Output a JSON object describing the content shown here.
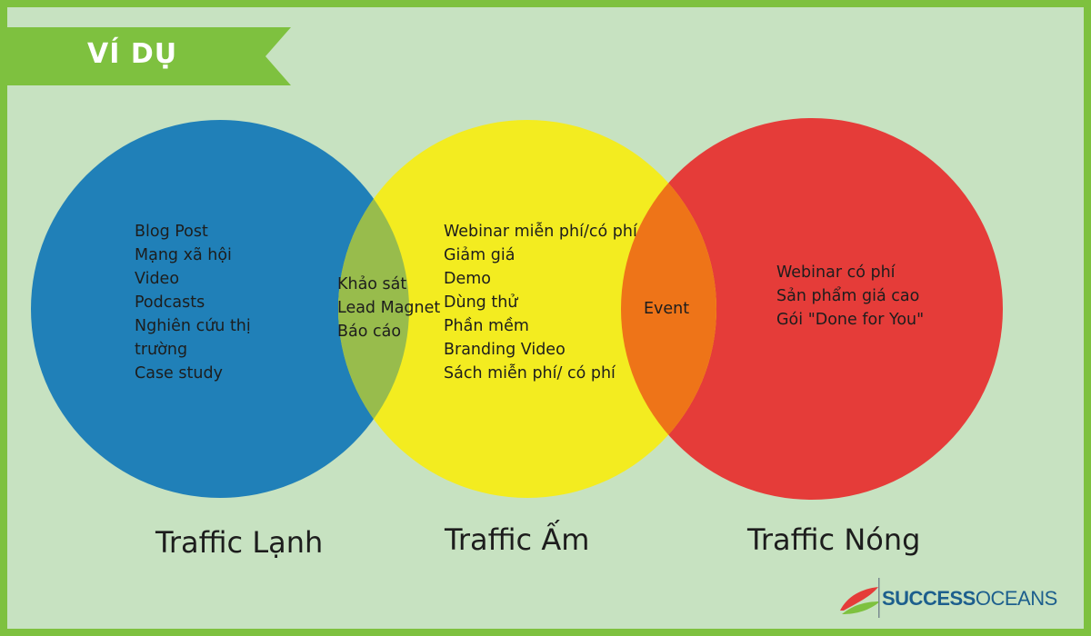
{
  "banner": {
    "text": "VÍ DỤ"
  },
  "circles": {
    "cold": {
      "color": "#2080b8",
      "label": "Traffic Lạnh",
      "items": [
        "Blog Post",
        "Mạng xã hội",
        "Video",
        "Podcasts",
        "Nghiên cứu thị",
        "trường",
        "Case study"
      ]
    },
    "warm": {
      "color": "#f3ec20",
      "label": "Traffic Ấm",
      "items": [
        "Webinar miễn phí/có phí",
        "Giảm giá",
        "Demo",
        "Dùng thử",
        "Phần mềm",
        "Branding Video",
        "Sách miễn phí/ có phí"
      ]
    },
    "hot": {
      "color": "#e53c39",
      "label": "Traffic Nóng",
      "items": [
        "Webinar có phí",
        "Sản phẩm giá cao",
        "Gói \"Done for You\""
      ]
    }
  },
  "overlaps": {
    "cold_warm": {
      "color": "#98bc4c",
      "items": [
        "Khảo sát",
        "Lead Magnet",
        "Báo cáo"
      ]
    },
    "warm_hot": {
      "color": "#ee7418",
      "items": [
        "Event"
      ]
    }
  },
  "logo": {
    "bold": "SUCCESS",
    "light": "OCEANS"
  },
  "colors": {
    "background": "#c7e2c1",
    "border": "#7ec13f",
    "banner": "#7ec13f"
  }
}
